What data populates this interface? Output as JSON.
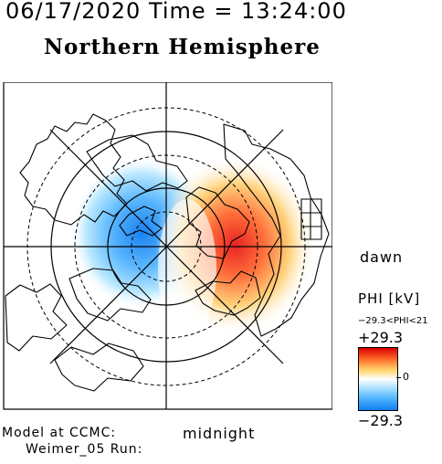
{
  "header": {
    "timestamp": "06/17/2020 Time = 13:24:00",
    "hemisphere": "Northern Hemisphere"
  },
  "map": {
    "type": "polar ionospheric potential map",
    "labels": {
      "dawn": "dawn",
      "midnight": "midnight"
    },
    "footer": {
      "model_line": "Model at CCMC:",
      "run_line": "Weimer_05 Run:"
    },
    "colorbar": {
      "title": "PHI [kV]",
      "range_text": "−29.3<PHI<21",
      "max_label": "+29.3",
      "zero_label": "0",
      "min_label": "−29.3",
      "colors": {
        "max": "#d90000",
        "mid_high": "#ff6b2a",
        "neutral": "#ffffff",
        "mid_low": "#55b8ff",
        "min": "#0d7ff2"
      }
    }
  }
}
